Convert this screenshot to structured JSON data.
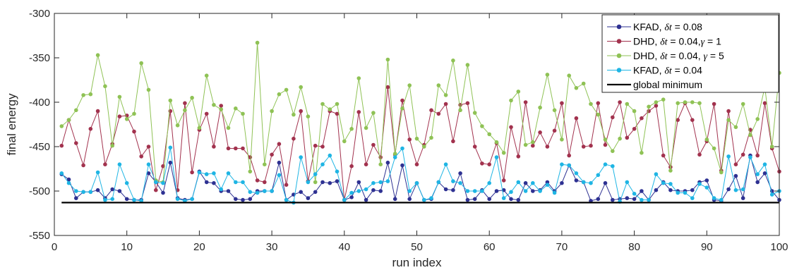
{
  "chart_data": {
    "type": "line",
    "xlabel": "run index",
    "ylabel": "final energy",
    "xlim": [
      0,
      100
    ],
    "ylim": [
      -550,
      -300
    ],
    "xticks": [
      0,
      10,
      20,
      30,
      40,
      50,
      60,
      70,
      80,
      90,
      100
    ],
    "yticks": [
      -550,
      -500,
      -450,
      -400,
      -350,
      -300
    ],
    "xtick_labels": [
      "0",
      "10",
      "20",
      "30",
      "40",
      "50",
      "60",
      "70",
      "80",
      "90",
      "100"
    ],
    "ytick_labels": [
      "-550",
      "-500",
      "-450",
      "-400",
      "-350",
      "-300"
    ],
    "grid": false,
    "legend_position": "top-right",
    "legend": [
      {
        "pre": "KFAD, ",
        "sym1": "δt",
        "mid": " = 0.08",
        "sym2": "",
        "post": ""
      },
      {
        "pre": "DHD, ",
        "sym1": "δt",
        "mid": " = 0.04,",
        "sym2": "γ",
        "post": " = 1"
      },
      {
        "pre": "DHD, ",
        "sym1": "δt",
        "mid": " = 0.04, ",
        "sym2": "γ",
        "post": " =  5"
      },
      {
        "pre": "KFAD, ",
        "sym1": "δt",
        "mid": " = 0.04",
        "sym2": "",
        "post": ""
      },
      {
        "pre": "global minimum",
        "sym1": "",
        "mid": "",
        "sym2": "",
        "post": ""
      }
    ],
    "global_minimum": -513,
    "x": [
      1,
      2,
      3,
      4,
      5,
      6,
      7,
      8,
      9,
      10,
      11,
      12,
      13,
      14,
      15,
      16,
      17,
      18,
      19,
      20,
      21,
      22,
      23,
      24,
      25,
      26,
      27,
      28,
      29,
      30,
      31,
      32,
      33,
      34,
      35,
      36,
      37,
      38,
      39,
      40,
      41,
      42,
      43,
      44,
      45,
      46,
      47,
      48,
      49,
      50,
      51,
      52,
      53,
      54,
      55,
      56,
      57,
      58,
      59,
      60,
      61,
      62,
      63,
      64,
      65,
      66,
      67,
      68,
      69,
      70,
      71,
      72,
      73,
      74,
      75,
      76,
      77,
      78,
      79,
      80,
      81,
      82,
      83,
      84,
      85,
      86,
      87,
      88,
      89,
      90,
      91,
      92,
      93,
      94,
      95,
      96,
      97,
      98,
      99,
      100
    ],
    "series": [
      {
        "color": "#2e3192",
        "values": [
          -481,
          -487,
          -508,
          -501,
          -501,
          -499,
          -508,
          -498,
          -500,
          -509,
          -510,
          -510,
          -480,
          -490,
          -502,
          -468,
          -508,
          -510,
          -509,
          -478,
          -490,
          -491,
          -500,
          -500,
          -509,
          -510,
          -509,
          -500,
          -500,
          -500,
          -468,
          -510,
          -504,
          -501,
          -508,
          -501,
          -490,
          -491,
          -489,
          -510,
          -507,
          -490,
          -510,
          -499,
          -500,
          -468,
          -509,
          -471,
          -509,
          -491,
          -510,
          -509,
          -490,
          -498,
          -499,
          -480,
          -510,
          -509,
          -499,
          -509,
          -500,
          -499,
          -509,
          -510,
          -491,
          -500,
          -499,
          -490,
          -500,
          -491,
          -471,
          -488,
          -490,
          -511,
          -509,
          -491,
          -510,
          -509,
          -508,
          -509,
          -500,
          -510,
          -499,
          -490,
          -499,
          -500,
          -500,
          -499,
          -490,
          -488,
          -510,
          -511,
          -498,
          -483,
          -508,
          -460,
          -490,
          -480,
          -500,
          -510
        ]
      },
      {
        "color": "#a2324e",
        "values": [
          -449,
          -420,
          -446,
          -471,
          -430,
          -410,
          -470,
          -447,
          -416,
          -415,
          -433,
          -461,
          -450,
          -499,
          -472,
          -410,
          -499,
          -401,
          -479,
          -431,
          -413,
          -450,
          -404,
          -452,
          -452,
          -452,
          -462,
          -488,
          -490,
          -459,
          -447,
          -493,
          -441,
          -410,
          -489,
          -449,
          -450,
          -410,
          -413,
          -510,
          -472,
          -411,
          -470,
          -448,
          -462,
          -383,
          -459,
          -398,
          -442,
          -470,
          -448,
          -409,
          -413,
          -402,
          -444,
          -403,
          -401,
          -450,
          -469,
          -470,
          -446,
          -488,
          -428,
          -461,
          -400,
          -449,
          -434,
          -450,
          -432,
          -401,
          -460,
          -418,
          -450,
          -449,
          -401,
          -448,
          -417,
          -400,
          -440,
          -430,
          -418,
          -410,
          -404,
          -460,
          -473,
          -420,
          -401,
          -420,
          -459,
          -444,
          -402,
          -477,
          -410,
          -470,
          -459,
          -431,
          -460,
          -401,
          -452,
          -478
        ]
      },
      {
        "color": "#8fc255",
        "values": [
          -427,
          -420,
          -409,
          -392,
          -391,
          -347,
          -382,
          -449,
          -394,
          -419,
          -413,
          -356,
          -386,
          -488,
          -490,
          -398,
          -426,
          -409,
          -395,
          -429,
          -370,
          -403,
          -408,
          -429,
          -407,
          -413,
          -478,
          -333,
          -470,
          -410,
          -391,
          -386,
          -414,
          -383,
          -416,
          -490,
          -402,
          -408,
          -402,
          -444,
          -430,
          -373,
          -429,
          -412,
          -470,
          -352,
          -458,
          -407,
          -381,
          -441,
          -450,
          -440,
          -381,
          -392,
          -353,
          -409,
          -358,
          -412,
          -427,
          -436,
          -445,
          -457,
          -398,
          -388,
          -448,
          -445,
          -406,
          -369,
          -409,
          -442,
          -370,
          -384,
          -379,
          -402,
          -414,
          -442,
          -455,
          -441,
          -402,
          -410,
          -457,
          -405,
          -400,
          -397,
          -477,
          -401,
          -400,
          -400,
          -401,
          -442,
          -452,
          -479,
          -420,
          -428,
          -402,
          -437,
          -419,
          -383,
          -450,
          -367
        ]
      },
      {
        "color": "#1fb5e4",
        "values": [
          -480,
          -491,
          -500,
          -501,
          -501,
          -479,
          -510,
          -509,
          -470,
          -491,
          -510,
          -511,
          -470,
          -490,
          -491,
          -451,
          -509,
          -511,
          -509,
          -479,
          -481,
          -480,
          -498,
          -480,
          -490,
          -490,
          -501,
          -502,
          -500,
          -500,
          -482,
          -510,
          -513,
          -462,
          -490,
          -481,
          -470,
          -460,
          -478,
          -510,
          -502,
          -500,
          -498,
          -491,
          -490,
          -489,
          -462,
          -452,
          -500,
          -491,
          -510,
          -508,
          -490,
          -470,
          -489,
          -491,
          -500,
          -500,
          -500,
          -491,
          -462,
          -508,
          -501,
          -490,
          -500,
          -491,
          -500,
          -493,
          -502,
          -470,
          -471,
          -480,
          -490,
          -491,
          -482,
          -470,
          -472,
          -512,
          -490,
          -503,
          -510,
          -510,
          -481,
          -491,
          -492,
          -502,
          -502,
          -508,
          -492,
          -496,
          -508,
          -510,
          -461,
          -499,
          -498,
          -462,
          -481,
          -470,
          -504,
          -500
        ]
      }
    ]
  }
}
